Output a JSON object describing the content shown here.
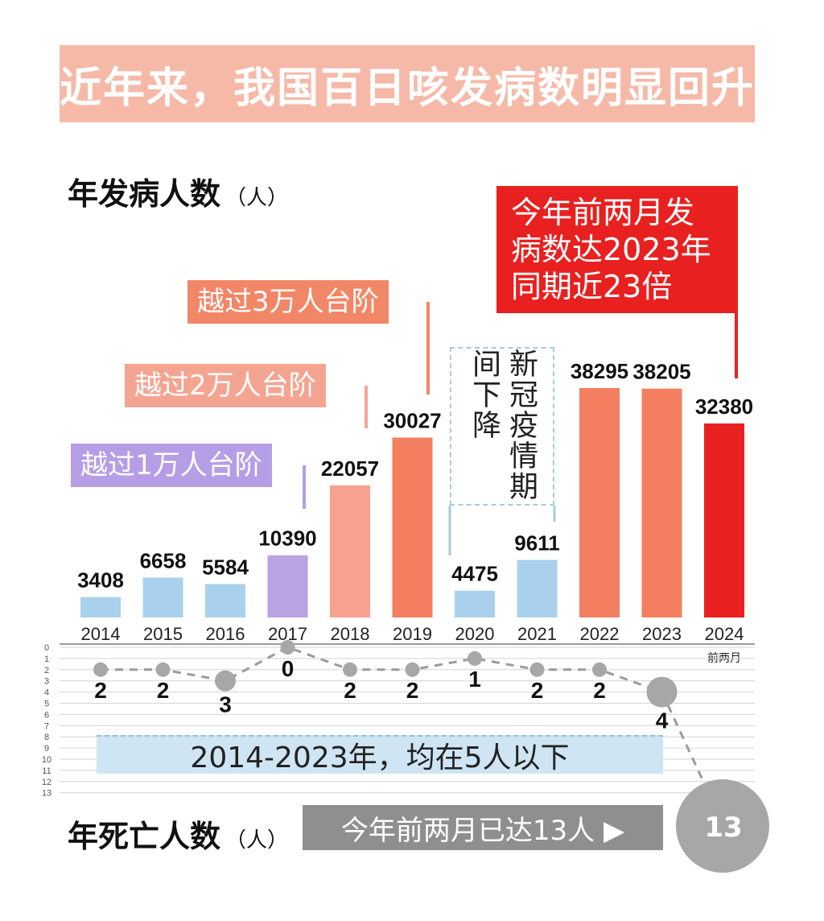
{
  "title": "近年来，我国百日咳发病数明显回升",
  "cases_heading": {
    "label": "年发病人数",
    "unit": "（人）"
  },
  "deaths_heading": {
    "label": "年死亡人数",
    "unit": "（人）"
  },
  "tags": {
    "10k": "越过1万人台阶",
    "20k": "越过2万人台阶",
    "30k": "越过3万人台阶"
  },
  "callout": [
    "今年前两月发",
    "病数达2023年",
    "同期近23倍"
  ],
  "covid_note": "新冠疫情期间下降",
  "band_text": "2014-2023年，均在5人以下",
  "grey_label": "今年前两月已达13人 ▶",
  "year_2024_sublabel": "前两月",
  "colors": {
    "blue": "#a9d1ed",
    "purple": "#b9a3e3",
    "salmon": "#f7a28f",
    "orange": "#f47f60",
    "red": "#e8201f",
    "grey": "#a7a7a7",
    "tag_purple": "#b59ee6",
    "tag_salmon": "#f4a592",
    "tag_orange": "#f28767"
  },
  "chart_data": [
    {
      "type": "bar",
      "categories": [
        "2014",
        "2015",
        "2016",
        "2017",
        "2018",
        "2019",
        "2020",
        "2021",
        "2022",
        "2023",
        "2024"
      ],
      "values": [
        3408,
        6658,
        5584,
        10390,
        22057,
        30027,
        4475,
        9611,
        38295,
        38205,
        32380
      ],
      "bar_colors": [
        "blue",
        "blue",
        "blue",
        "purple",
        "salmon",
        "orange",
        "blue",
        "blue",
        "orange",
        "orange",
        "red"
      ],
      "title": "年发病人数",
      "ylabel": "（人）",
      "ylim": [
        0,
        40000
      ]
    },
    {
      "type": "line",
      "categories": [
        "2014",
        "2015",
        "2016",
        "2017",
        "2018",
        "2019",
        "2020",
        "2021",
        "2022",
        "2023",
        "2024"
      ],
      "values": [
        2,
        2,
        3,
        0,
        2,
        2,
        1,
        2,
        2,
        4,
        13
      ],
      "title": "年死亡人数",
      "ylabel": "（人）",
      "ylim": [
        0,
        13
      ],
      "y_ticks": [
        "0",
        "1",
        "2",
        "3",
        "4",
        "5",
        "6",
        "7",
        "8",
        "9",
        "10",
        "11",
        "12",
        "13"
      ],
      "y_direction": "inverted"
    }
  ]
}
